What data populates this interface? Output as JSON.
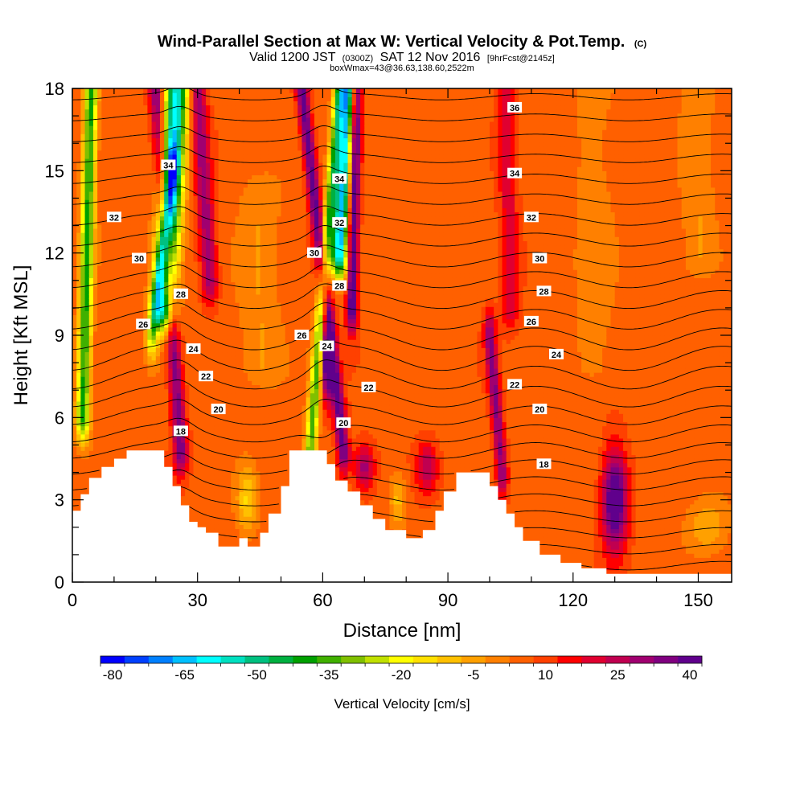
{
  "chart_data": {
    "type": "heatmap",
    "title": "Wind-Parallel Section at Max W: Vertical Velocity & Pot.Temp.",
    "copyright": "(C)",
    "subtitle": {
      "valid_prefix": "Valid 1200 JST",
      "utc": "(0300Z)",
      "date": "SAT 12 Nov 2016",
      "forecast": "[9hrFcst@2145z]"
    },
    "box_info": "boxWmax=43@36.63,138.60,2522m",
    "xlabel": "Distance [nm]",
    "ylabel": "Height [Kft MSL]",
    "xlim": [
      0,
      158
    ],
    "ylim": [
      0,
      18
    ],
    "x_ticks": [
      "0",
      "30",
      "60",
      "90",
      "120",
      "150"
    ],
    "y_ticks": [
      "0",
      "3",
      "6",
      "9",
      "12",
      "15",
      "18"
    ],
    "colorbar": {
      "label": "Vertical Velocity [cm/s]",
      "tick_labels": [
        "-80",
        "-65",
        "-50",
        "-35",
        "-20",
        "-5",
        "10",
        "25",
        "40"
      ],
      "colors": [
        "#0000ff",
        "#0040ff",
        "#0080ff",
        "#00c0ff",
        "#00ffff",
        "#00e0c0",
        "#00c080",
        "#00b040",
        "#00a000",
        "#40b000",
        "#80c000",
        "#c0e000",
        "#ffff00",
        "#ffe000",
        "#ffc000",
        "#ffa000",
        "#ff8000",
        "#ff6000",
        "#ff4000",
        "#ff0000",
        "#e00030",
        "#c00050",
        "#a00070",
        "#800080",
        "#60008c"
      ]
    },
    "terrain_profile": [
      [
        0,
        2.6
      ],
      [
        2,
        2.6
      ],
      [
        2,
        3.2
      ],
      [
        4,
        3.2
      ],
      [
        4,
        3.8
      ],
      [
        7,
        3.8
      ],
      [
        7,
        4.2
      ],
      [
        10,
        4.2
      ],
      [
        10,
        4.5
      ],
      [
        13,
        4.5
      ],
      [
        13,
        4.8
      ],
      [
        22,
        4.8
      ],
      [
        22,
        4.2
      ],
      [
        24,
        4.2
      ],
      [
        24,
        3.5
      ],
      [
        26,
        3.5
      ],
      [
        26,
        2.8
      ],
      [
        28,
        2.8
      ],
      [
        28,
        2.2
      ],
      [
        30,
        2.2
      ],
      [
        30,
        2.0
      ],
      [
        32,
        2.0
      ],
      [
        32,
        1.8
      ],
      [
        35,
        1.8
      ],
      [
        35,
        1.3
      ],
      [
        40,
        1.3
      ],
      [
        40,
        1.6
      ],
      [
        42,
        1.6
      ],
      [
        42,
        1.3
      ],
      [
        45,
        1.3
      ],
      [
        45,
        1.8
      ],
      [
        47,
        1.8
      ],
      [
        47,
        2.5
      ],
      [
        50,
        2.5
      ],
      [
        50,
        3.5
      ],
      [
        52,
        3.5
      ],
      [
        52,
        4.8
      ],
      [
        61,
        4.8
      ],
      [
        61,
        4.3
      ],
      [
        63,
        4.3
      ],
      [
        63,
        3.7
      ],
      [
        66,
        3.7
      ],
      [
        66,
        3.3
      ],
      [
        69,
        3.3
      ],
      [
        69,
        2.8
      ],
      [
        72,
        2.8
      ],
      [
        72,
        2.3
      ],
      [
        75,
        2.3
      ],
      [
        75,
        1.9
      ],
      [
        80,
        1.9
      ],
      [
        80,
        1.6
      ],
      [
        84,
        1.6
      ],
      [
        84,
        1.9
      ],
      [
        87,
        1.9
      ],
      [
        87,
        2.6
      ],
      [
        89,
        2.6
      ],
      [
        89,
        3.3
      ],
      [
        92,
        3.3
      ],
      [
        92,
        4.0
      ],
      [
        100,
        4.0
      ],
      [
        100,
        3.5
      ],
      [
        102,
        3.5
      ],
      [
        102,
        3.0
      ],
      [
        104,
        3.0
      ],
      [
        104,
        2.5
      ],
      [
        106,
        2.5
      ],
      [
        106,
        2.0
      ],
      [
        108,
        2.0
      ],
      [
        108,
        1.5
      ],
      [
        112,
        1.5
      ],
      [
        112,
        1.0
      ],
      [
        117,
        1.0
      ],
      [
        117,
        0.7
      ],
      [
        122,
        0.7
      ],
      [
        122,
        0.5
      ],
      [
        128,
        0.5
      ],
      [
        128,
        0.3
      ],
      [
        158,
        0.3
      ]
    ],
    "contour_labels": [
      {
        "text": "36",
        "x": 106,
        "y": 17.3
      },
      {
        "text": "34",
        "x": 23,
        "y": 15.2
      },
      {
        "text": "34",
        "x": 64,
        "y": 14.7
      },
      {
        "text": "34",
        "x": 106,
        "y": 14.9
      },
      {
        "text": "32",
        "x": 10,
        "y": 13.3
      },
      {
        "text": "32",
        "x": 64,
        "y": 13.1
      },
      {
        "text": "32",
        "x": 110,
        "y": 13.3
      },
      {
        "text": "30",
        "x": 16,
        "y": 11.8
      },
      {
        "text": "30",
        "x": 58,
        "y": 12.0
      },
      {
        "text": "30",
        "x": 112,
        "y": 11.8
      },
      {
        "text": "28",
        "x": 26,
        "y": 10.5
      },
      {
        "text": "28",
        "x": 64,
        "y": 10.8
      },
      {
        "text": "28",
        "x": 113,
        "y": 10.6
      },
      {
        "text": "26",
        "x": 17,
        "y": 9.4
      },
      {
        "text": "26",
        "x": 55,
        "y": 9.0
      },
      {
        "text": "26",
        "x": 110,
        "y": 9.5
      },
      {
        "text": "24",
        "x": 29,
        "y": 8.5
      },
      {
        "text": "24",
        "x": 61,
        "y": 8.6
      },
      {
        "text": "24",
        "x": 116,
        "y": 8.3
      },
      {
        "text": "22",
        "x": 32,
        "y": 7.5
      },
      {
        "text": "22",
        "x": 71,
        "y": 7.1
      },
      {
        "text": "22",
        "x": 106,
        "y": 7.2
      },
      {
        "text": "20",
        "x": 35,
        "y": 6.3
      },
      {
        "text": "20",
        "x": 65,
        "y": 5.8
      },
      {
        "text": "20",
        "x": 112,
        "y": 6.3
      },
      {
        "text": "18",
        "x": 26,
        "y": 5.5
      },
      {
        "text": "18",
        "x": 113,
        "y": 4.3
      }
    ],
    "w_features": [
      {
        "x0": 2.5,
        "z0": 6.0,
        "x1": 4.5,
        "z1": 18,
        "w": -45,
        "sx": 1.6,
        "sz": 99
      },
      {
        "x0": 22,
        "z0": 10,
        "x1": 25,
        "z1": 18,
        "w": -65,
        "sx": 2.8,
        "sz": 99
      },
      {
        "x0": 19,
        "z0": 9,
        "x1": 24,
        "z1": 15,
        "w": -30,
        "sx": 1.4,
        "sz": 99
      },
      {
        "x0": 26,
        "z0": 4.8,
        "x1": 20,
        "z1": 18,
        "w": 30,
        "sx": 1.7,
        "sz": 99
      },
      {
        "x0": 33,
        "z0": 11,
        "x1": 30,
        "z1": 18,
        "w": 25,
        "sx": 2.0,
        "sz": 99
      },
      {
        "x0": 57,
        "z0": 4.8,
        "x1": 64,
        "z1": 18,
        "w": -40,
        "sx": 1.4,
        "sz": 99
      },
      {
        "x0": 64,
        "z0": 12,
        "x1": 66,
        "z1": 18,
        "w": -70,
        "sx": 1.8,
        "sz": 99
      },
      {
        "x0": 65,
        "z0": 4.8,
        "x1": 55,
        "z1": 18,
        "w": 35,
        "sx": 1.5,
        "sz": 99
      },
      {
        "x0": 67,
        "z0": 10,
        "x1": 68,
        "z1": 18,
        "w": 40,
        "sx": 1.3,
        "sz": 99
      },
      {
        "x0": 61,
        "z0": 8,
        "x1": 61,
        "z1": 8,
        "w": 42,
        "sx": 1.3,
        "sz": 1.4
      },
      {
        "x0": 103,
        "z0": 4,
        "x1": 100,
        "z1": 9,
        "w": 28,
        "sx": 1.4,
        "sz": 99
      },
      {
        "x0": 105,
        "z0": 10,
        "x1": 104,
        "z1": 18,
        "w": 15,
        "sx": 2.2,
        "sz": 99
      },
      {
        "x0": 130,
        "z0": 3.0,
        "x1": 130,
        "z1": 3.0,
        "w": 45,
        "sx": 3.0,
        "sz": 1.8
      },
      {
        "x0": 70,
        "z0": 4.2,
        "x1": 70,
        "z1": 4.2,
        "w": 25,
        "sx": 2.5,
        "sz": 0.9
      },
      {
        "x0": 85,
        "z0": 4.2,
        "x1": 85,
        "z1": 4.2,
        "w": 20,
        "sx": 2.5,
        "sz": 0.9
      },
      {
        "x0": 42,
        "z0": 3.0,
        "x1": 42,
        "z1": 3.0,
        "w": -18,
        "sx": 2.5,
        "sz": 1.2
      },
      {
        "x0": 78,
        "z0": 3.0,
        "x1": 78,
        "z1": 3.0,
        "w": -15,
        "sx": 2.0,
        "sz": 1.0
      },
      {
        "x0": 152,
        "z0": 2.0,
        "x1": 152,
        "z1": 2.0,
        "w": -12,
        "sx": 5.0,
        "sz": 1.0
      },
      {
        "x0": 45,
        "z0": 8,
        "x1": 45,
        "z1": 14,
        "w": -8,
        "sx": 5.0,
        "sz": 99
      },
      {
        "x0": 125,
        "z0": 8,
        "x1": 125,
        "z1": 18,
        "w": -6,
        "sx": 5.0,
        "sz": 99
      },
      {
        "x0": 150,
        "z0": 12,
        "x1": 150,
        "z1": 18,
        "w": -8,
        "sx": 4.0,
        "sz": 99
      }
    ]
  }
}
